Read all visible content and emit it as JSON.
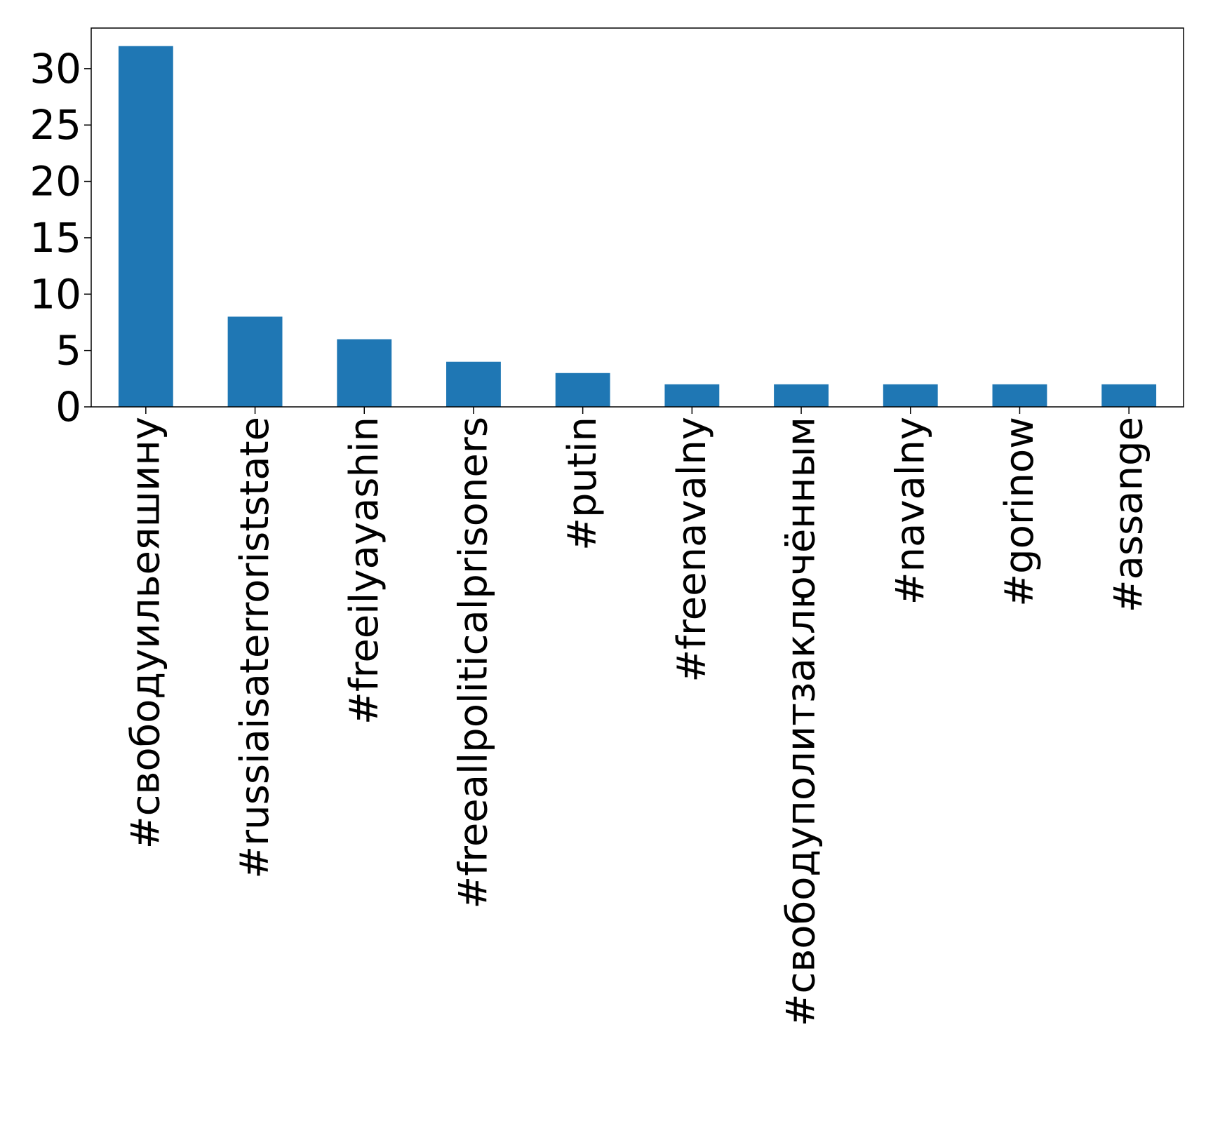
{
  "chart_data": {
    "type": "bar",
    "title": "",
    "xlabel": "",
    "ylabel": "",
    "categories": [
      "#свободуильеяшину",
      "#russiaisaterroriststate",
      "#freeilyayashin",
      "#freeallpoliticalprisoners",
      "#putin",
      "#freenavalny",
      "#свободуполитзаключённым",
      "#navalny",
      "#gorinow",
      "#assange"
    ],
    "values": [
      32,
      8,
      6,
      4,
      3,
      2,
      2,
      2,
      2,
      2
    ],
    "ylim": [
      0,
      33.6
    ],
    "yticks": [
      0,
      5,
      10,
      15,
      20,
      25,
      30
    ],
    "ytick_labels": [
      "0",
      "5",
      "10",
      "15",
      "20",
      "25",
      "30"
    ],
    "grid": false,
    "legend": "none",
    "colors": {
      "bar": "#1f77b4",
      "axis": "#000000",
      "background": "#ffffff"
    }
  }
}
